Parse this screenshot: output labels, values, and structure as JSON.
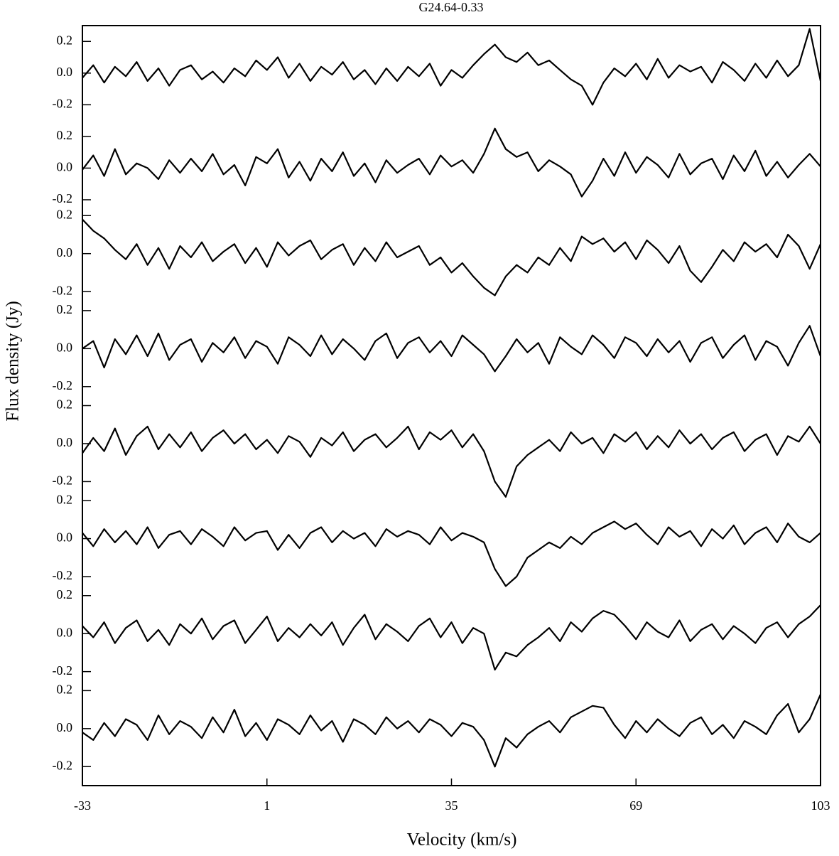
{
  "chart_data": {
    "type": "line",
    "title": "G24.64-0.33",
    "x_label": "Velocity (km/s)",
    "y_label": "Flux density (Jy)",
    "color": "#000000",
    "xlim": [
      -33,
      103
    ],
    "xticks": [
      -33,
      1,
      35,
      69,
      103
    ],
    "x": [
      -33,
      -31,
      -29,
      -27,
      -25,
      -23,
      -21,
      -19,
      -17,
      -15,
      -13,
      -11,
      -9,
      -7,
      -5,
      -3,
      -1,
      1,
      3,
      5,
      7,
      9,
      11,
      13,
      15,
      17,
      19,
      21,
      23,
      25,
      27,
      29,
      31,
      33,
      35,
      37,
      39,
      41,
      43,
      45,
      47,
      49,
      51,
      53,
      55,
      57,
      59,
      61,
      63,
      65,
      67,
      69,
      71,
      73,
      75,
      77,
      79,
      81,
      83,
      85,
      87,
      89,
      91,
      93,
      95,
      97,
      99,
      101,
      103
    ],
    "series": [
      {
        "ylim": [
          -0.3,
          0.3
        ],
        "yticks": [
          0.2,
          {
            "value": 0,
            "label": "0.0"
          },
          -0.2
        ],
        "values": [
          -0.03,
          0.05,
          -0.06,
          0.04,
          -0.02,
          0.07,
          -0.05,
          0.03,
          -0.08,
          0.02,
          0.05,
          -0.04,
          0.01,
          -0.06,
          0.03,
          -0.02,
          0.08,
          0.02,
          0.1,
          -0.03,
          0.06,
          -0.05,
          0.04,
          -0.01,
          0.07,
          -0.04,
          0.02,
          -0.07,
          0.03,
          -0.05,
          0.04,
          -0.02,
          0.06,
          -0.08,
          0.02,
          -0.03,
          0.05,
          0.12,
          0.18,
          0.1,
          0.07,
          0.13,
          0.05,
          0.08,
          0.02,
          -0.04,
          -0.08,
          -0.2,
          -0.06,
          0.03,
          -0.02,
          0.06,
          -0.04,
          0.09,
          -0.03,
          0.05,
          0.01,
          0.04,
          -0.06,
          0.07,
          0.02,
          -0.05,
          0.06,
          -0.03,
          0.08,
          -0.02,
          0.05,
          0.28,
          -0.05
        ]
      },
      {
        "ylim": [
          -0.3,
          0.3
        ],
        "yticks": [
          0.2,
          {
            "value": 0,
            "label": "0.0"
          },
          -0.2
        ],
        "values": [
          -0.01,
          0.08,
          -0.05,
          0.12,
          -0.04,
          0.03,
          0.0,
          -0.07,
          0.05,
          -0.03,
          0.06,
          -0.02,
          0.09,
          -0.04,
          0.02,
          -0.11,
          0.07,
          0.03,
          0.12,
          -0.06,
          0.04,
          -0.08,
          0.06,
          -0.02,
          0.1,
          -0.05,
          0.03,
          -0.09,
          0.05,
          -0.03,
          0.02,
          0.06,
          -0.04,
          0.08,
          0.01,
          0.05,
          -0.03,
          0.09,
          0.25,
          0.12,
          0.07,
          0.1,
          -0.02,
          0.05,
          0.01,
          -0.04,
          -0.18,
          -0.08,
          0.06,
          -0.05,
          0.1,
          -0.03,
          0.07,
          0.02,
          -0.06,
          0.09,
          -0.04,
          0.03,
          0.06,
          -0.07,
          0.08,
          -0.02,
          0.11,
          -0.05,
          0.04,
          -0.06,
          0.02,
          0.09,
          0.01
        ]
      },
      {
        "ylim": [
          -0.3,
          0.2
        ],
        "yticks": [
          0.2,
          {
            "value": 0,
            "label": "0.0"
          },
          -0.2
        ],
        "values": [
          0.18,
          0.12,
          0.08,
          0.02,
          -0.03,
          0.05,
          -0.06,
          0.03,
          -0.08,
          0.04,
          -0.02,
          0.06,
          -0.04,
          0.01,
          0.05,
          -0.05,
          0.03,
          -0.07,
          0.06,
          -0.01,
          0.04,
          0.07,
          -0.03,
          0.02,
          0.05,
          -0.06,
          0.03,
          -0.04,
          0.06,
          -0.02,
          0.01,
          0.04,
          -0.06,
          -0.02,
          -0.1,
          -0.05,
          -0.12,
          -0.18,
          -0.22,
          -0.12,
          -0.06,
          -0.1,
          -0.02,
          -0.06,
          0.03,
          -0.04,
          0.09,
          0.05,
          0.08,
          0.01,
          0.06,
          -0.03,
          0.07,
          0.02,
          -0.05,
          0.04,
          -0.09,
          -0.15,
          -0.07,
          0.02,
          -0.04,
          0.06,
          0.01,
          0.05,
          -0.02,
          0.1,
          0.04,
          -0.08,
          0.05
        ]
      },
      {
        "ylim": [
          -0.3,
          0.2
        ],
        "yticks": [
          0.2,
          {
            "value": 0,
            "label": "0.0"
          },
          -0.2
        ],
        "values": [
          0.0,
          0.04,
          -0.1,
          0.05,
          -0.03,
          0.07,
          -0.04,
          0.08,
          -0.06,
          0.02,
          0.05,
          -0.07,
          0.03,
          -0.02,
          0.06,
          -0.05,
          0.04,
          0.01,
          -0.08,
          0.06,
          0.02,
          -0.04,
          0.07,
          -0.03,
          0.05,
          0.0,
          -0.06,
          0.04,
          0.08,
          -0.05,
          0.03,
          0.06,
          -0.02,
          0.04,
          -0.04,
          0.07,
          0.02,
          -0.03,
          -0.12,
          -0.04,
          0.05,
          -0.02,
          0.03,
          -0.08,
          0.06,
          0.01,
          -0.03,
          0.07,
          0.02,
          -0.05,
          0.06,
          0.03,
          -0.04,
          0.05,
          -0.02,
          0.04,
          -0.07,
          0.03,
          0.06,
          -0.05,
          0.02,
          0.07,
          -0.06,
          0.04,
          0.01,
          -0.09,
          0.03,
          0.12,
          -0.04
        ]
      },
      {
        "ylim": [
          -0.3,
          0.2
        ],
        "yticks": [
          0.2,
          {
            "value": 0,
            "label": "0.0"
          },
          -0.2
        ],
        "values": [
          -0.05,
          0.03,
          -0.04,
          0.08,
          -0.06,
          0.04,
          0.09,
          -0.03,
          0.05,
          -0.02,
          0.06,
          -0.04,
          0.03,
          0.07,
          0.0,
          0.05,
          -0.03,
          0.02,
          -0.05,
          0.04,
          0.01,
          -0.07,
          0.03,
          -0.01,
          0.06,
          -0.04,
          0.02,
          0.05,
          -0.02,
          0.03,
          0.09,
          -0.03,
          0.06,
          0.02,
          0.07,
          -0.02,
          0.05,
          -0.04,
          -0.2,
          -0.28,
          -0.12,
          -0.06,
          -0.02,
          0.02,
          -0.04,
          0.06,
          0.0,
          0.03,
          -0.05,
          0.05,
          0.01,
          0.06,
          -0.03,
          0.04,
          -0.02,
          0.07,
          0.0,
          0.05,
          -0.03,
          0.03,
          0.06,
          -0.04,
          0.02,
          0.05,
          -0.06,
          0.04,
          0.01,
          0.09,
          0.0
        ]
      },
      {
        "ylim": [
          -0.3,
          0.2
        ],
        "yticks": [
          0.2,
          {
            "value": 0,
            "label": "0.0"
          },
          -0.2
        ],
        "values": [
          0.03,
          -0.04,
          0.05,
          -0.02,
          0.04,
          -0.03,
          0.06,
          -0.05,
          0.02,
          0.04,
          -0.03,
          0.05,
          0.01,
          -0.04,
          0.06,
          -0.01,
          0.03,
          0.04,
          -0.06,
          0.02,
          -0.05,
          0.03,
          0.06,
          -0.02,
          0.04,
          0.0,
          0.03,
          -0.04,
          0.05,
          0.01,
          0.04,
          0.02,
          -0.03,
          0.06,
          -0.01,
          0.03,
          0.01,
          -0.02,
          -0.16,
          -0.25,
          -0.2,
          -0.1,
          -0.06,
          -0.02,
          -0.05,
          0.01,
          -0.03,
          0.03,
          0.06,
          0.09,
          0.05,
          0.08,
          0.02,
          -0.03,
          0.06,
          0.01,
          0.04,
          -0.04,
          0.05,
          0.0,
          0.07,
          -0.03,
          0.03,
          0.06,
          -0.02,
          0.08,
          0.01,
          -0.02,
          0.03
        ]
      },
      {
        "ylim": [
          -0.3,
          0.2
        ],
        "yticks": [
          0.2,
          {
            "value": 0,
            "label": "0.0"
          },
          -0.2
        ],
        "values": [
          0.04,
          -0.02,
          0.06,
          -0.05,
          0.03,
          0.07,
          -0.04,
          0.02,
          -0.06,
          0.05,
          0.0,
          0.08,
          -0.03,
          0.04,
          0.07,
          -0.05,
          0.02,
          0.09,
          -0.04,
          0.03,
          -0.02,
          0.05,
          -0.01,
          0.06,
          -0.06,
          0.03,
          0.1,
          -0.03,
          0.05,
          0.01,
          -0.04,
          0.04,
          0.08,
          -0.02,
          0.06,
          -0.05,
          0.03,
          0.0,
          -0.19,
          -0.1,
          -0.12,
          -0.06,
          -0.02,
          0.03,
          -0.04,
          0.06,
          0.01,
          0.08,
          0.12,
          0.1,
          0.04,
          -0.03,
          0.06,
          0.01,
          -0.02,
          0.07,
          -0.04,
          0.02,
          0.05,
          -0.03,
          0.04,
          0.0,
          -0.05,
          0.03,
          0.06,
          -0.02,
          0.05,
          0.09,
          0.15
        ]
      },
      {
        "ylim": [
          -0.3,
          0.2
        ],
        "yticks": [
          0.2,
          {
            "value": 0,
            "label": "0.0"
          },
          -0.2
        ],
        "values": [
          -0.02,
          -0.06,
          0.03,
          -0.04,
          0.05,
          0.02,
          -0.06,
          0.07,
          -0.03,
          0.04,
          0.01,
          -0.05,
          0.06,
          -0.02,
          0.1,
          -0.04,
          0.03,
          -0.06,
          0.05,
          0.02,
          -0.03,
          0.07,
          -0.01,
          0.04,
          -0.07,
          0.05,
          0.02,
          -0.03,
          0.06,
          0.0,
          0.04,
          -0.02,
          0.05,
          0.02,
          -0.04,
          0.03,
          0.01,
          -0.06,
          -0.2,
          -0.05,
          -0.1,
          -0.03,
          0.01,
          0.04,
          -0.02,
          0.06,
          0.09,
          0.12,
          0.11,
          0.02,
          -0.05,
          0.04,
          -0.02,
          0.05,
          0.0,
          -0.04,
          0.03,
          0.06,
          -0.03,
          0.02,
          -0.05,
          0.04,
          0.01,
          -0.03,
          0.07,
          0.13,
          -0.02,
          0.05,
          0.18
        ]
      }
    ]
  }
}
